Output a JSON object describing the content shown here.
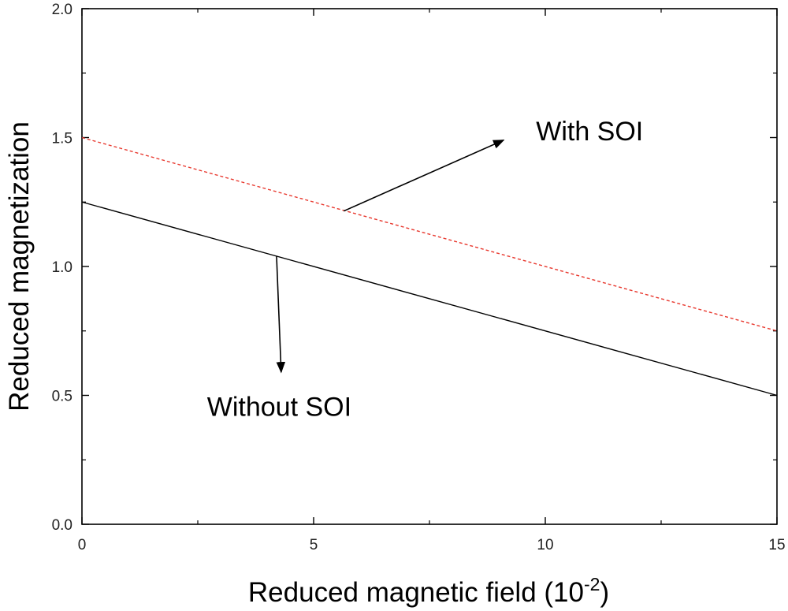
{
  "chart_data": {
    "type": "line",
    "xlabel": "Reduced magnetic field (10",
    "xlabel_superscript": "-2",
    "xlabel_suffix": ")",
    "ylabel": "Reduced magnetization",
    "xlim": [
      0,
      15
    ],
    "ylim": [
      0,
      2.0
    ],
    "x_ticks": [
      0,
      5,
      10,
      15
    ],
    "x_tick_labels": [
      "0",
      "5",
      "10",
      "15"
    ],
    "x_minor_ticks": [
      2.5,
      7.5,
      12.5
    ],
    "y_ticks": [
      0,
      0.5,
      1.0,
      1.5,
      2.0
    ],
    "y_tick_labels": [
      "0.0",
      "0.5",
      "1.0",
      "1.5",
      "2.0"
    ],
    "y_minor_ticks": [
      0.25,
      0.75,
      1.25,
      1.75
    ],
    "grid": false,
    "series": [
      {
        "name": "With SOI",
        "x": [
          0,
          15
        ],
        "y": [
          1.5,
          0.75
        ],
        "color": "#e8392f",
        "dashed": true
      },
      {
        "name": "Without SOI",
        "x": [
          0,
          15
        ],
        "y": [
          1.25,
          0.5
        ],
        "color": "#000000",
        "dashed": false
      }
    ],
    "annotations": [
      {
        "text": "With SOI",
        "x": 9.8,
        "y": 1.49,
        "arrow_from": [
          5.65,
          1.215
        ],
        "arrow_to": [
          9.1,
          1.49
        ]
      },
      {
        "text": "Without SOI",
        "x": 2.7,
        "y": 0.42,
        "arrow_from": [
          4.2,
          1.04
        ],
        "arrow_to": [
          4.3,
          0.59
        ]
      }
    ]
  }
}
